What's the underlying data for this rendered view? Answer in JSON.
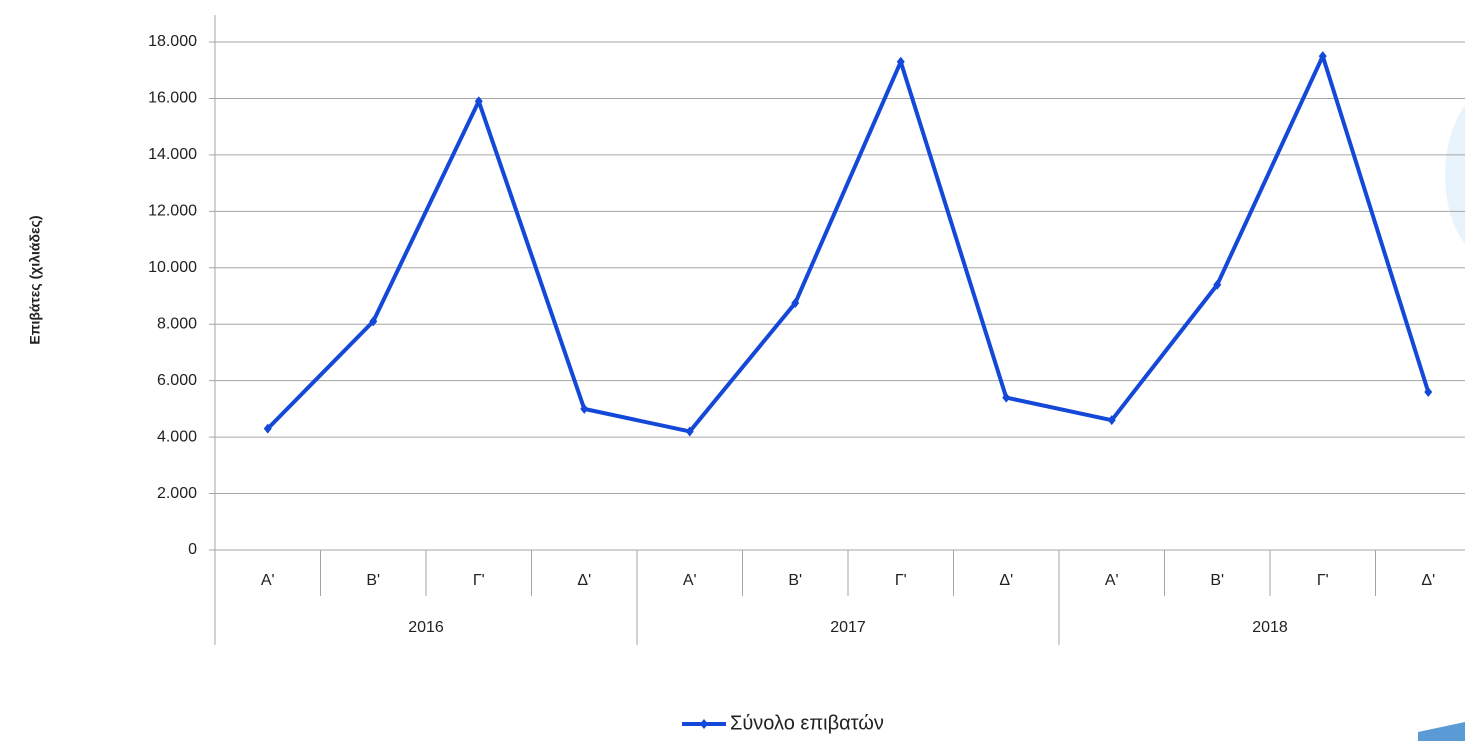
{
  "chart_data": {
    "type": "line",
    "y_axis_label": "Επιβάτες (χιλιάδες)",
    "categories": [
      "Α'",
      "Β'",
      "Γ'",
      "Δ'",
      "Α'",
      "Β'",
      "Γ'",
      "Δ'",
      "Α'",
      "Β'",
      "Γ'",
      "Δ'"
    ],
    "years": [
      "2016",
      "2017",
      "2018"
    ],
    "series": [
      {
        "name": "Σύνολο επιβατών",
        "color": "#1448d8",
        "values": [
          4300,
          8100,
          15900,
          5000,
          4200,
          8750,
          17300,
          5400,
          4600,
          9400,
          17500,
          5600
        ]
      }
    ],
    "ylim": [
      0,
      18000
    ],
    "yticks": [
      0,
      {
        "value": 2000,
        "label": "2.000"
      },
      {
        "value": 4000,
        "label": "4.000"
      },
      {
        "value": 6000,
        "label": "6.000"
      },
      {
        "value": 8000,
        "label": "8.000"
      },
      {
        "value": 10000,
        "label": "10.000"
      },
      {
        "value": 12000,
        "label": "12.000"
      },
      {
        "value": 14000,
        "label": "14.000"
      },
      {
        "value": 16000,
        "label": "16.000"
      },
      {
        "value": 18000,
        "label": "18.000"
      }
    ],
    "grid": true,
    "legend": "bottom"
  }
}
